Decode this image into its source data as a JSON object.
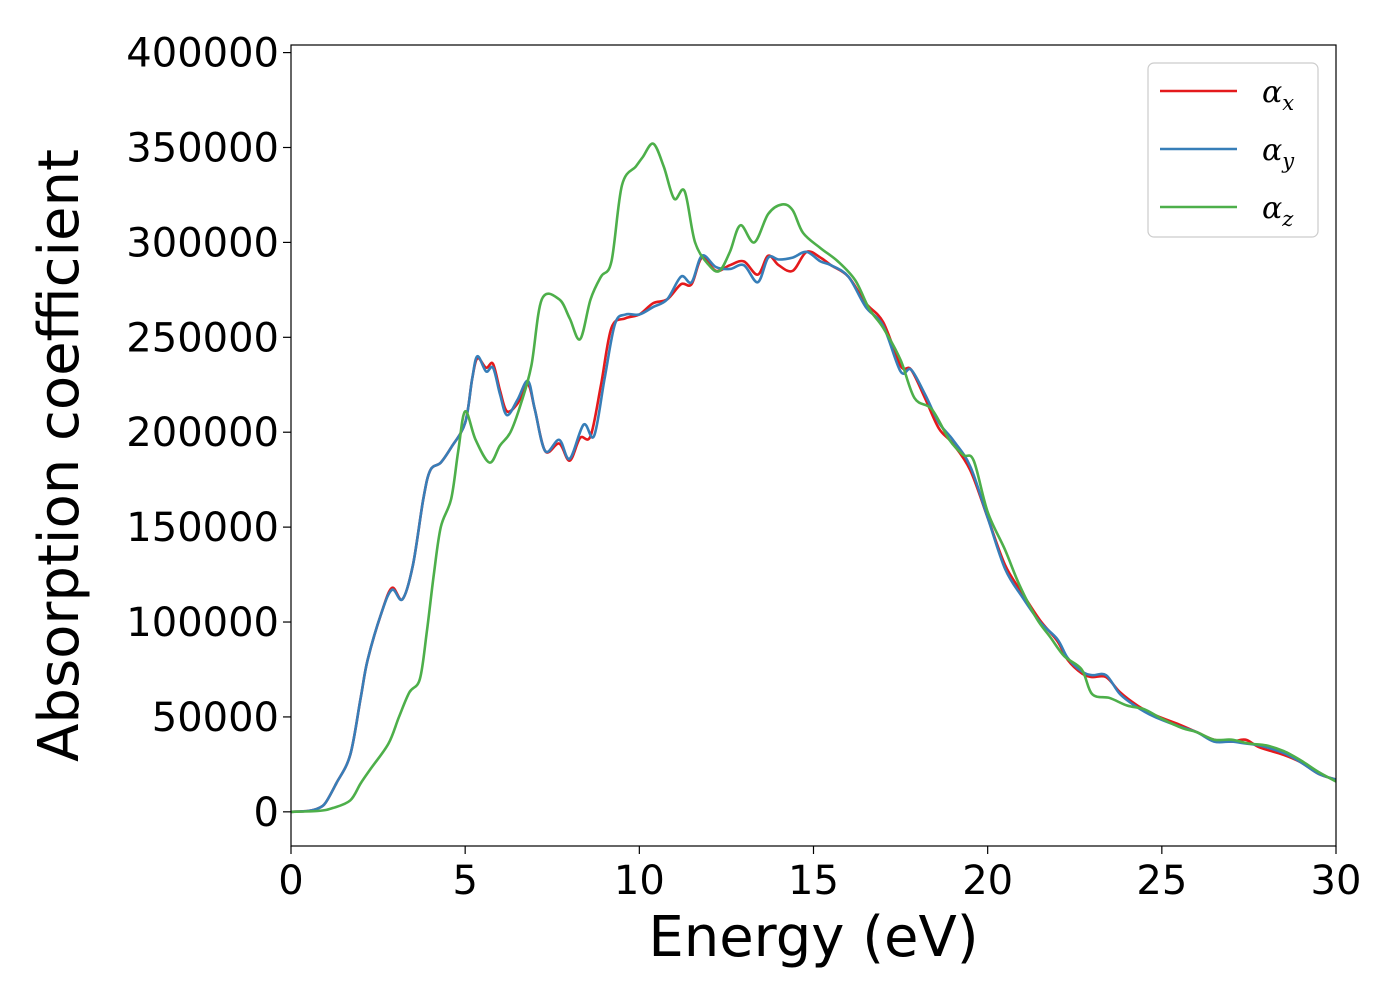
{
  "chart_data": {
    "type": "line",
    "xlabel": "Energy (eV)",
    "ylabel": "Absorption coefficient",
    "xlim": [
      0,
      30
    ],
    "ylim": [
      -18000,
      404000
    ],
    "xticks": [
      0,
      5,
      10,
      15,
      20,
      25,
      30
    ],
    "xtick_labels": [
      "0",
      "5",
      "10",
      "15",
      "20",
      "25",
      "30"
    ],
    "yticks": [
      0,
      50000,
      100000,
      150000,
      200000,
      250000,
      300000,
      350000,
      400000
    ],
    "ytick_labels": [
      "0",
      "50000",
      "100000",
      "150000",
      "200000",
      "250000",
      "300000",
      "350000",
      "400000"
    ],
    "grid": false,
    "legend_position": "top-right",
    "series": [
      {
        "name": "αx",
        "legend_base": "α",
        "legend_sub": "x",
        "color": "#e41a1c",
        "points": [
          [
            0,
            0
          ],
          [
            0.5,
            500
          ],
          [
            0.8,
            2000
          ],
          [
            1.0,
            5000
          ],
          [
            1.3,
            15000
          ],
          [
            1.7,
            30000
          ],
          [
            2.0,
            60000
          ],
          [
            2.2,
            80000
          ],
          [
            2.6,
            105000
          ],
          [
            2.9,
            118000
          ],
          [
            3.2,
            112000
          ],
          [
            3.5,
            130000
          ],
          [
            3.8,
            165000
          ],
          [
            4.0,
            180000
          ],
          [
            4.3,
            184000
          ],
          [
            4.6,
            192000
          ],
          [
            5.0,
            205000
          ],
          [
            5.2,
            228000
          ],
          [
            5.35,
            239000
          ],
          [
            5.6,
            234000
          ],
          [
            5.8,
            236000
          ],
          [
            6.0,
            222000
          ],
          [
            6.2,
            211000
          ],
          [
            6.5,
            215000
          ],
          [
            6.8,
            225000
          ],
          [
            7.0,
            212000
          ],
          [
            7.3,
            190000
          ],
          [
            7.7,
            194000
          ],
          [
            8.0,
            185000
          ],
          [
            8.3,
            197000
          ],
          [
            8.6,
            198000
          ],
          [
            8.9,
            225000
          ],
          [
            9.2,
            255000
          ],
          [
            9.6,
            260000
          ],
          [
            10.0,
            262000
          ],
          [
            10.4,
            268000
          ],
          [
            10.8,
            270000
          ],
          [
            11.2,
            278000
          ],
          [
            11.5,
            278000
          ],
          [
            11.8,
            292000
          ],
          [
            12.2,
            285000
          ],
          [
            12.6,
            288000
          ],
          [
            13.0,
            290000
          ],
          [
            13.4,
            283000
          ],
          [
            13.7,
            293000
          ],
          [
            14.0,
            288000
          ],
          [
            14.4,
            285000
          ],
          [
            14.8,
            295000
          ],
          [
            15.2,
            292000
          ],
          [
            15.5,
            288000
          ],
          [
            16.0,
            282000
          ],
          [
            16.5,
            268000
          ],
          [
            17.0,
            258000
          ],
          [
            17.5,
            235000
          ],
          [
            17.8,
            233000
          ],
          [
            18.2,
            218000
          ],
          [
            18.6,
            202000
          ],
          [
            19.0,
            194000
          ],
          [
            19.5,
            180000
          ],
          [
            20.0,
            155000
          ],
          [
            20.5,
            130000
          ],
          [
            21.0,
            115000
          ],
          [
            21.5,
            101000
          ],
          [
            22.0,
            90000
          ],
          [
            22.3,
            80000
          ],
          [
            22.7,
            73000
          ],
          [
            23.0,
            71000
          ],
          [
            23.4,
            71000
          ],
          [
            23.8,
            63000
          ],
          [
            24.3,
            56000
          ],
          [
            24.8,
            51000
          ],
          [
            25.5,
            46000
          ],
          [
            26.0,
            42000
          ],
          [
            26.5,
            38000
          ],
          [
            27.0,
            37000
          ],
          [
            27.4,
            38000
          ],
          [
            27.8,
            34000
          ],
          [
            28.5,
            30000
          ],
          [
            29.0,
            26000
          ],
          [
            29.5,
            20000
          ],
          [
            30,
            17000
          ]
        ]
      },
      {
        "name": "αy",
        "legend_base": "α",
        "legend_sub": "y",
        "color": "#377eb8",
        "points": [
          [
            0,
            0
          ],
          [
            0.5,
            500
          ],
          [
            0.8,
            2000
          ],
          [
            1.0,
            5000
          ],
          [
            1.3,
            15000
          ],
          [
            1.7,
            30000
          ],
          [
            2.0,
            60000
          ],
          [
            2.2,
            80000
          ],
          [
            2.6,
            105000
          ],
          [
            2.9,
            117000
          ],
          [
            3.2,
            112000
          ],
          [
            3.5,
            130000
          ],
          [
            3.8,
            165000
          ],
          [
            4.0,
            180000
          ],
          [
            4.3,
            184000
          ],
          [
            4.6,
            192000
          ],
          [
            5.0,
            205000
          ],
          [
            5.2,
            228000
          ],
          [
            5.35,
            240000
          ],
          [
            5.6,
            232000
          ],
          [
            5.8,
            234000
          ],
          [
            6.0,
            220000
          ],
          [
            6.2,
            209000
          ],
          [
            6.5,
            217000
          ],
          [
            6.8,
            227000
          ],
          [
            7.0,
            212000
          ],
          [
            7.3,
            190000
          ],
          [
            7.7,
            196000
          ],
          [
            8.0,
            186000
          ],
          [
            8.4,
            204000
          ],
          [
            8.7,
            198000
          ],
          [
            9.0,
            228000
          ],
          [
            9.3,
            257000
          ],
          [
            9.6,
            262000
          ],
          [
            10.0,
            262000
          ],
          [
            10.4,
            266000
          ],
          [
            10.8,
            270000
          ],
          [
            11.2,
            282000
          ],
          [
            11.5,
            279000
          ],
          [
            11.8,
            293000
          ],
          [
            12.2,
            287000
          ],
          [
            12.6,
            286000
          ],
          [
            13.0,
            288000
          ],
          [
            13.4,
            279000
          ],
          [
            13.7,
            292000
          ],
          [
            14.0,
            291000
          ],
          [
            14.4,
            292000
          ],
          [
            14.8,
            295000
          ],
          [
            15.2,
            290000
          ],
          [
            15.5,
            288000
          ],
          [
            16.0,
            282000
          ],
          [
            16.5,
            266000
          ],
          [
            17.0,
            256000
          ],
          [
            17.5,
            232000
          ],
          [
            17.8,
            233000
          ],
          [
            18.2,
            220000
          ],
          [
            18.6,
            205000
          ],
          [
            19.0,
            196000
          ],
          [
            19.5,
            182000
          ],
          [
            20.0,
            155000
          ],
          [
            20.5,
            128000
          ],
          [
            21.0,
            113000
          ],
          [
            21.5,
            100000
          ],
          [
            22.0,
            91000
          ],
          [
            22.3,
            81000
          ],
          [
            22.7,
            74000
          ],
          [
            23.0,
            72000
          ],
          [
            23.4,
            72000
          ],
          [
            23.8,
            62000
          ],
          [
            24.3,
            55000
          ],
          [
            24.8,
            50000
          ],
          [
            25.5,
            45000
          ],
          [
            26.0,
            42000
          ],
          [
            26.5,
            37000
          ],
          [
            27.0,
            37000
          ],
          [
            27.4,
            36000
          ],
          [
            27.8,
            35000
          ],
          [
            28.5,
            31000
          ],
          [
            29.0,
            26000
          ],
          [
            29.5,
            20000
          ],
          [
            30,
            17000
          ]
        ]
      },
      {
        "name": "αz",
        "legend_base": "α",
        "legend_sub": "z",
        "color": "#4daf4a",
        "points": [
          [
            0,
            0
          ],
          [
            0.8,
            500
          ],
          [
            1.2,
            2000
          ],
          [
            1.7,
            6000
          ],
          [
            2.0,
            15000
          ],
          [
            2.3,
            23000
          ],
          [
            2.8,
            36000
          ],
          [
            3.1,
            50000
          ],
          [
            3.4,
            63000
          ],
          [
            3.7,
            70000
          ],
          [
            3.9,
            95000
          ],
          [
            4.1,
            125000
          ],
          [
            4.3,
            150000
          ],
          [
            4.6,
            165000
          ],
          [
            4.8,
            190000
          ],
          [
            5.0,
            211000
          ],
          [
            5.3,
            196000
          ],
          [
            5.7,
            184000
          ],
          [
            6.0,
            193000
          ],
          [
            6.3,
            200000
          ],
          [
            6.6,
            215000
          ],
          [
            6.9,
            235000
          ],
          [
            7.2,
            270000
          ],
          [
            7.7,
            270000
          ],
          [
            8.0,
            260000
          ],
          [
            8.3,
            249000
          ],
          [
            8.6,
            270000
          ],
          [
            8.9,
            282000
          ],
          [
            9.2,
            290000
          ],
          [
            9.5,
            330000
          ],
          [
            9.9,
            340000
          ],
          [
            10.1,
            345000
          ],
          [
            10.4,
            352000
          ],
          [
            10.7,
            340000
          ],
          [
            11.0,
            323000
          ],
          [
            11.3,
            327000
          ],
          [
            11.6,
            300000
          ],
          [
            12.0,
            288000
          ],
          [
            12.3,
            285000
          ],
          [
            12.6,
            295000
          ],
          [
            12.9,
            309000
          ],
          [
            13.3,
            300000
          ],
          [
            13.7,
            315000
          ],
          [
            14.1,
            320000
          ],
          [
            14.4,
            317000
          ],
          [
            14.7,
            305000
          ],
          [
            15.2,
            297000
          ],
          [
            15.7,
            290000
          ],
          [
            16.2,
            280000
          ],
          [
            16.6,
            265000
          ],
          [
            17.0,
            255000
          ],
          [
            17.5,
            238000
          ],
          [
            17.9,
            218000
          ],
          [
            18.4,
            212000
          ],
          [
            18.9,
            196000
          ],
          [
            19.3,
            188000
          ],
          [
            19.6,
            185000
          ],
          [
            20.0,
            158000
          ],
          [
            20.5,
            138000
          ],
          [
            20.9,
            120000
          ],
          [
            21.4,
            102000
          ],
          [
            21.8,
            92000
          ],
          [
            22.2,
            82000
          ],
          [
            22.7,
            75000
          ],
          [
            23.0,
            62000
          ],
          [
            23.5,
            60000
          ],
          [
            24.0,
            56000
          ],
          [
            24.5,
            54000
          ],
          [
            25.0,
            49000
          ],
          [
            25.6,
            44000
          ],
          [
            26.0,
            42000
          ],
          [
            26.5,
            38000
          ],
          [
            27.0,
            38000
          ],
          [
            27.5,
            36000
          ],
          [
            28.0,
            35000
          ],
          [
            28.5,
            32000
          ],
          [
            29.0,
            27000
          ],
          [
            29.5,
            21000
          ],
          [
            30,
            16000
          ]
        ]
      }
    ]
  }
}
